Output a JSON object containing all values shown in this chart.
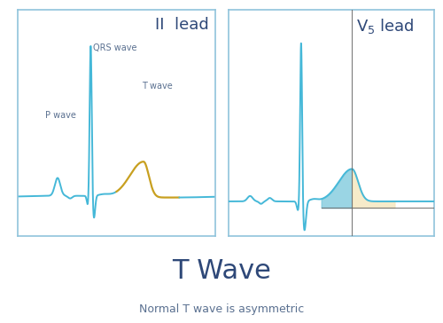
{
  "title": "T Wave",
  "subtitle": "Normal T wave is asymmetric",
  "panel1_title": "II  lead",
  "panel2_title_v": "V",
  "panel2_subscript": "5",
  "panel2_title_lead": " lead",
  "ecg_color": "#45b8d8",
  "t_wave_color": "#c8a020",
  "fill_left_color": "#78c8dc",
  "fill_right_color": "#f5e8c0",
  "crosshair_color": "#666666",
  "box_edge_color": "#90c4dc",
  "title_color": "#2e4878",
  "label_color": "#5a7090",
  "subtitle_color": "#5a7090",
  "bg_color": "#ffffff",
  "title_fontsize": 22,
  "subtitle_fontsize": 9,
  "panel_title_fontsize": 13,
  "label_fontsize": 7,
  "fig_width": 5.0,
  "fig_height": 3.64,
  "dpi": 100
}
